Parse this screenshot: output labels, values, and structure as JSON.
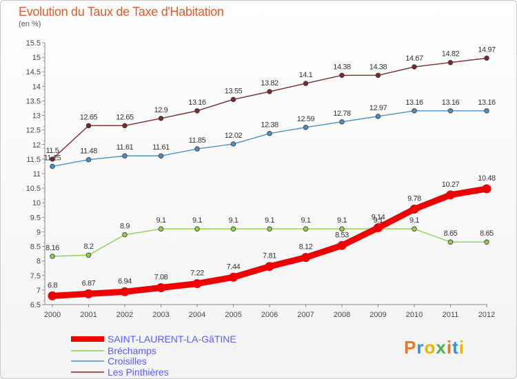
{
  "page": {
    "title": "Evolution du Taux de Taxe d'Habitation",
    "subtitle": "(en %)",
    "logo_text": "Proxiti",
    "logo_colors": [
      "#e8762d",
      "#3a8fd4",
      "#f0b400",
      "#4caf50",
      "#e8762d",
      "#3a8fd4",
      "#f0b400"
    ]
  },
  "chart_data": {
    "type": "line",
    "title": "Evolution du Taux de Taxe d'Habitation",
    "subtitle": "(en %)",
    "x": [
      "2000",
      "2001",
      "2002",
      "2003",
      "2004",
      "2005",
      "2006",
      "2007",
      "2008",
      "2009",
      "2010",
      "2011",
      "2012"
    ],
    "ylim": [
      6.5,
      15.5
    ],
    "yticks": [
      "6.5",
      "7",
      "7.5",
      "8",
      "8.5",
      "9",
      "9.5",
      "10",
      "10.5",
      "11",
      "11.5",
      "12",
      "12.5",
      "13",
      "13.5",
      "14",
      "14.5",
      "15",
      "15.5"
    ],
    "grid": false,
    "legend_position": "bottom-left",
    "series": [
      {
        "name": "Les Pinthières",
        "color": "#7a2a2a",
        "values": [
          11.5,
          12.65,
          12.65,
          12.9,
          13.16,
          13.55,
          13.82,
          14.1,
          14.38,
          14.38,
          14.67,
          14.82,
          14.97
        ],
        "labels": [
          "11.5",
          "12.65",
          "12.65",
          "12.9",
          "13.16",
          "13.55",
          "13.82",
          "14.1",
          "14.38",
          "14.38",
          "14.67",
          "14.82",
          "14.97"
        ]
      },
      {
        "name": "Croisilles",
        "color": "#4a90c8",
        "values": [
          11.25,
          11.48,
          11.61,
          11.61,
          11.85,
          12.02,
          12.38,
          12.59,
          12.78,
          12.97,
          13.16,
          13.16,
          13.16
        ],
        "labels": [
          "11.25",
          "11.48",
          "11.61",
          "11.61",
          "11.85",
          "12.02",
          "12.38",
          "12.59",
          "12.78",
          "12.97",
          "13.16",
          "13.16",
          "13.16"
        ]
      },
      {
        "name": "Bréchamps",
        "color": "#8cd14a",
        "values": [
          8.16,
          8.2,
          8.9,
          9.1,
          9.1,
          9.1,
          9.1,
          9.1,
          9.1,
          9.1,
          9.1,
          8.65,
          8.65
        ],
        "labels": [
          "8.16",
          "8.2",
          "8.9",
          "9.1",
          "9.1",
          "9.1",
          "9.1",
          "9.1",
          "9.1",
          "9.1",
          "9.1",
          "8.65",
          "8.65"
        ]
      },
      {
        "name": "SAINT-LAURENT-LA-GâTINE",
        "color": "#ee0000",
        "values": [
          6.8,
          6.87,
          6.94,
          7.08,
          7.22,
          7.44,
          7.81,
          8.12,
          8.53,
          9.14,
          9.78,
          10.27,
          10.48
        ],
        "labels": [
          "6.8",
          "6.87",
          "6.94",
          "7.08",
          "7.22",
          "7.44",
          "7.81",
          "8.12",
          "8.53",
          "9.14",
          "9.78",
          "10.27",
          "10.48"
        ]
      }
    ],
    "legend": [
      "SAINT-LAURENT-LA-GâTINE",
      "Croisilles",
      "Bréchamps",
      "Les Pinthières"
    ]
  }
}
